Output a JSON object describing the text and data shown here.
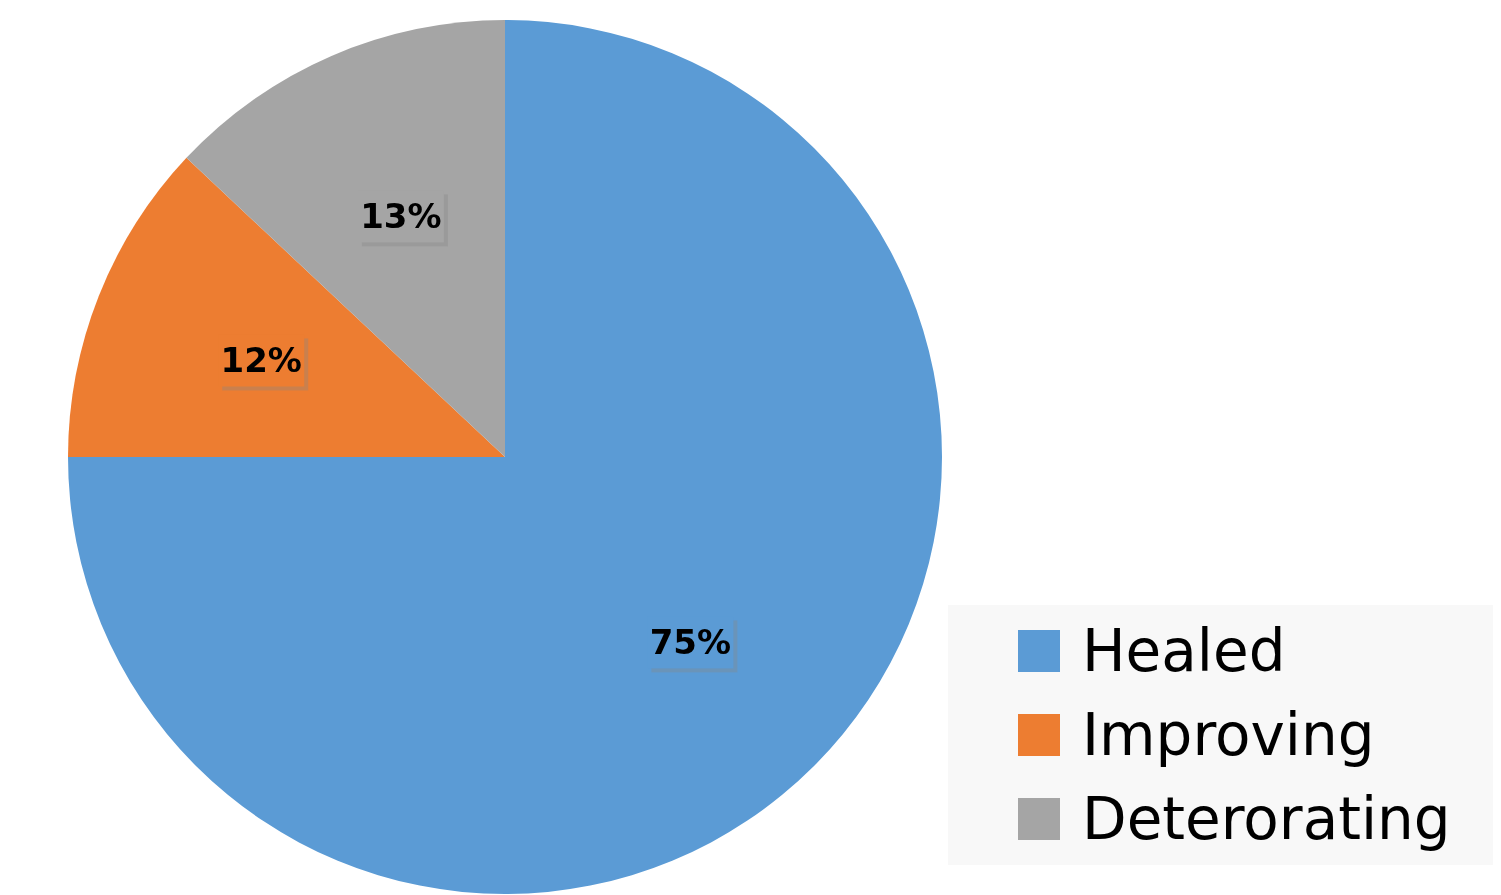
{
  "chart_data": {
    "type": "pie",
    "categories": [
      "Healed",
      "Improving",
      "Deterorating"
    ],
    "values": [
      75,
      12,
      13
    ],
    "colors": [
      "#5b9bd5",
      "#ed7d31",
      "#a5a5a5"
    ],
    "value_labels": [
      "75%",
      "12%",
      "13%"
    ],
    "legend": "bottom right"
  }
}
